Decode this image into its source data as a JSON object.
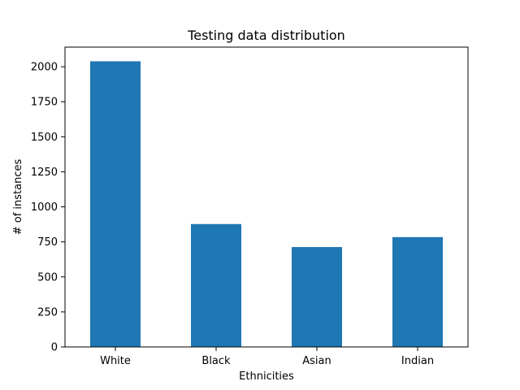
{
  "chart_data": {
    "type": "bar",
    "title": "Testing data distribution",
    "xlabel": "Ethnicities",
    "ylabel": "# of instances",
    "categories": [
      "White",
      "Black",
      "Asian",
      "Indian"
    ],
    "values": [
      2039,
      877,
      713,
      784
    ],
    "ylim": [
      0,
      2140
    ],
    "yticks": [
      0,
      250,
      500,
      750,
      1000,
      1250,
      1500,
      1750,
      2000
    ],
    "grid": false,
    "bar_color": "#1f77b4"
  }
}
